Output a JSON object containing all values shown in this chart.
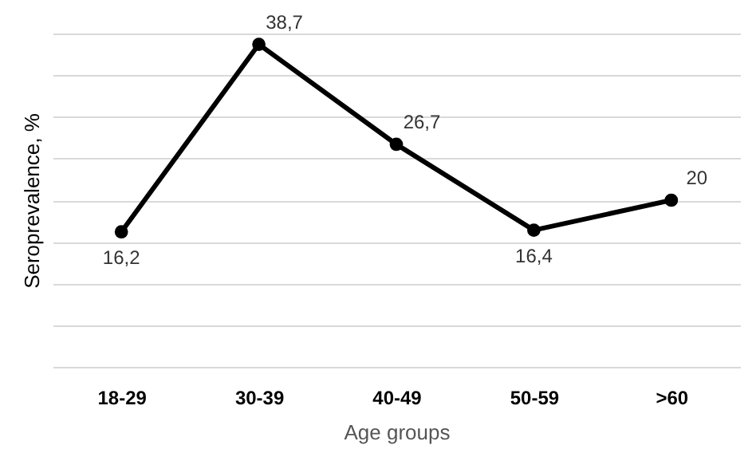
{
  "chart_data": {
    "type": "line",
    "xlabel": "Age groups",
    "ylabel": "Seroprevalence, %",
    "categories": [
      "18-29",
      "30-39",
      "40-49",
      "50-59",
      ">60"
    ],
    "series": [
      {
        "color": "#000000",
        "values": [
          16.2,
          38.7,
          26.7,
          16.4,
          20
        ],
        "value_labels": [
          "16,2",
          "38,7",
          "26,7",
          "16,4",
          "20"
        ]
      }
    ],
    "grid": "y",
    "tick_labels": "x",
    "marker": "circle",
    "line_style": "solid"
  }
}
